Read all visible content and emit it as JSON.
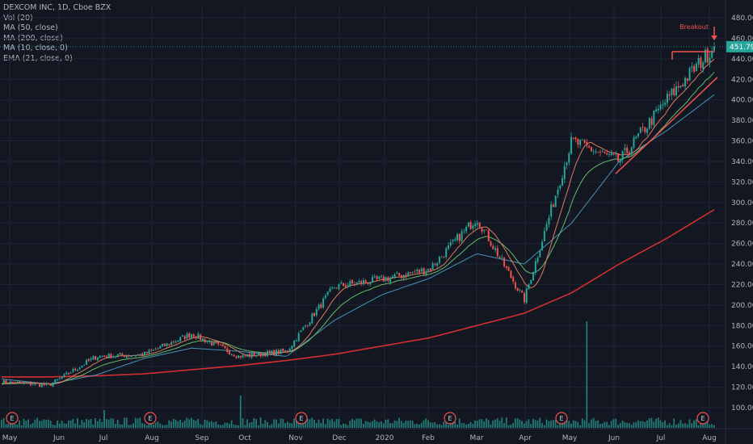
{
  "legend": {
    "title": "DEXCOM INC, 1D, Cboe BZX",
    "items": [
      "Vol (20)",
      "MA (50, close)",
      "MA (200, close)",
      "MA (10, close, 0)",
      "EMA (21, close, 0)"
    ]
  },
  "colors": {
    "background": "#131722",
    "grid": "#1f2433",
    "up": "#26a69a",
    "down": "#ef5350",
    "ma50": "#4a90b8",
    "ma200": "#d32f2f",
    "ma10": "#e07a5f",
    "ema21": "#66bb6a",
    "volume": "#26a69a",
    "price_label_bg": "#26a69a"
  },
  "chart_data": {
    "type": "candlestick",
    "x_ticks": [
      "May",
      "Jun",
      "Jul",
      "Aug",
      "Sep",
      "Oct",
      "Nov",
      "Dec",
      "2020",
      "Feb",
      "Mar",
      "Apr",
      "May",
      "Jun",
      "Jul",
      "Aug"
    ],
    "y_ticks": [
      100,
      120,
      140,
      160,
      180,
      200,
      220,
      240,
      260,
      280,
      300,
      320,
      340,
      360,
      380,
      400,
      420,
      440,
      460,
      480
    ],
    "ylim": [
      90,
      490
    ],
    "last_price": 451.79,
    "last_price_label": "451.79",
    "earnings_marker": "E",
    "earnings_months": [
      "May",
      "Aug",
      "Nov",
      "Feb",
      "May",
      "Aug"
    ],
    "annotation": "Breakout",
    "resistance_level": 447,
    "monthly_close": [
      125,
      122,
      150,
      152,
      172,
      150,
      155,
      218,
      225,
      235,
      285,
      205,
      360,
      340,
      400,
      451.79
    ],
    "ma50_monthly": [
      128,
      123,
      132,
      148,
      158,
      155,
      150,
      185,
      210,
      226,
      250,
      240,
      280,
      340,
      370,
      405
    ],
    "ma200_monthly": [
      130,
      130,
      131,
      133,
      137,
      141,
      146,
      152,
      160,
      168,
      180,
      192,
      212,
      240,
      265,
      293
    ]
  }
}
